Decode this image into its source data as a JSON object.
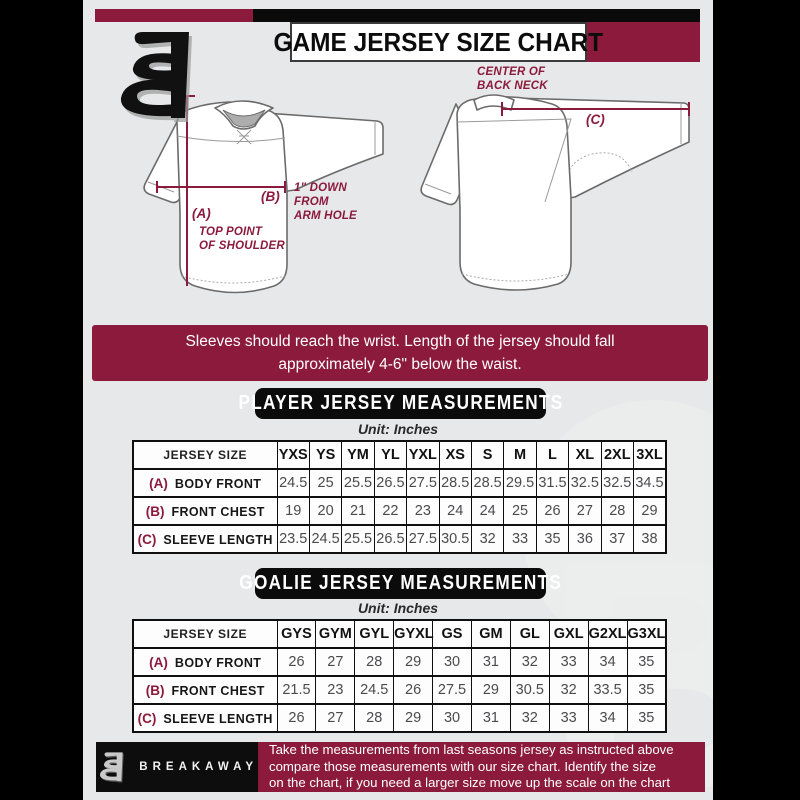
{
  "colors": {
    "maroon": "#8b1a3c",
    "page_bg": "#e7e8e9",
    "bar_black": "#0a0a0a",
    "value_text": "#4b4b4e"
  },
  "header": {
    "title": "GAME JERSEY SIZE CHART",
    "logo": "breakaway-b-monogram"
  },
  "diagram": {
    "front": {
      "label_a": "(A)",
      "label_b": "(B)",
      "note_a_lines": [
        "TOP POINT",
        "OF SHOULDER"
      ],
      "note_b_lines": [
        "1\" DOWN",
        "FROM",
        "ARM HOLE"
      ]
    },
    "back": {
      "label_c": "(C)",
      "note_c_lines": [
        "CENTER OF",
        "BACK NECK"
      ]
    }
  },
  "notice": {
    "lines": [
      "Sleeves should reach the wrist. Length of the jersey should fall",
      "approximately 4-6\" below the waist."
    ]
  },
  "player_section": {
    "title": "PLAYER JERSEY MEASUREMENTS",
    "unit": "Unit: Inches",
    "table": {
      "size_header": "JERSEY SIZE",
      "sizes": [
        "YXS",
        "YS",
        "YM",
        "YL",
        "YXL",
        "XS",
        "S",
        "M",
        "L",
        "XL",
        "2XL",
        "3XL"
      ],
      "rows": [
        {
          "key": "(A)",
          "label": "BODY FRONT",
          "values": [
            "24.5",
            "25",
            "25.5",
            "26.5",
            "27.5",
            "28.5",
            "28.5",
            "29.5",
            "31.5",
            "32.5",
            "32.5",
            "34.5"
          ]
        },
        {
          "key": "(B)",
          "label": "FRONT CHEST",
          "values": [
            "19",
            "20",
            "21",
            "22",
            "23",
            "24",
            "24",
            "25",
            "26",
            "27",
            "28",
            "29"
          ]
        },
        {
          "key": "(C)",
          "label": "SLEEVE LENGTH",
          "values": [
            "23.5",
            "24.5",
            "25.5",
            "26.5",
            "27.5",
            "30.5",
            "32",
            "33",
            "35",
            "36",
            "37",
            "38"
          ]
        }
      ]
    }
  },
  "goalie_section": {
    "title": "GOALIE JERSEY MEASUREMENTS",
    "unit": "Unit: Inches",
    "table": {
      "size_header": "JERSEY SIZE",
      "sizes": [
        "GYS",
        "GYM",
        "GYL",
        "GYXL",
        "GS",
        "GM",
        "GL",
        "GXL",
        "G2XL",
        "G3XL"
      ],
      "rows": [
        {
          "key": "(A)",
          "label": "BODY FRONT",
          "values": [
            "26",
            "27",
            "28",
            "29",
            "30",
            "31",
            "32",
            "33",
            "34",
            "35"
          ]
        },
        {
          "key": "(B)",
          "label": "FRONT CHEST",
          "values": [
            "21.5",
            "23",
            "24.5",
            "26",
            "27.5",
            "29",
            "30.5",
            "32",
            "33.5",
            "35"
          ]
        },
        {
          "key": "(C)",
          "label": "SLEEVE LENGTH",
          "values": [
            "26",
            "27",
            "28",
            "29",
            "30",
            "31",
            "32",
            "33",
            "34",
            "35"
          ]
        }
      ]
    }
  },
  "footer": {
    "brand": "BREAKAWAY",
    "lines": [
      "Take the measurements from last seasons jersey as instructed above",
      "compare those measurements with our size chart. Identify the size",
      "on the chart, if you need a larger size move up the scale on the chart"
    ]
  }
}
